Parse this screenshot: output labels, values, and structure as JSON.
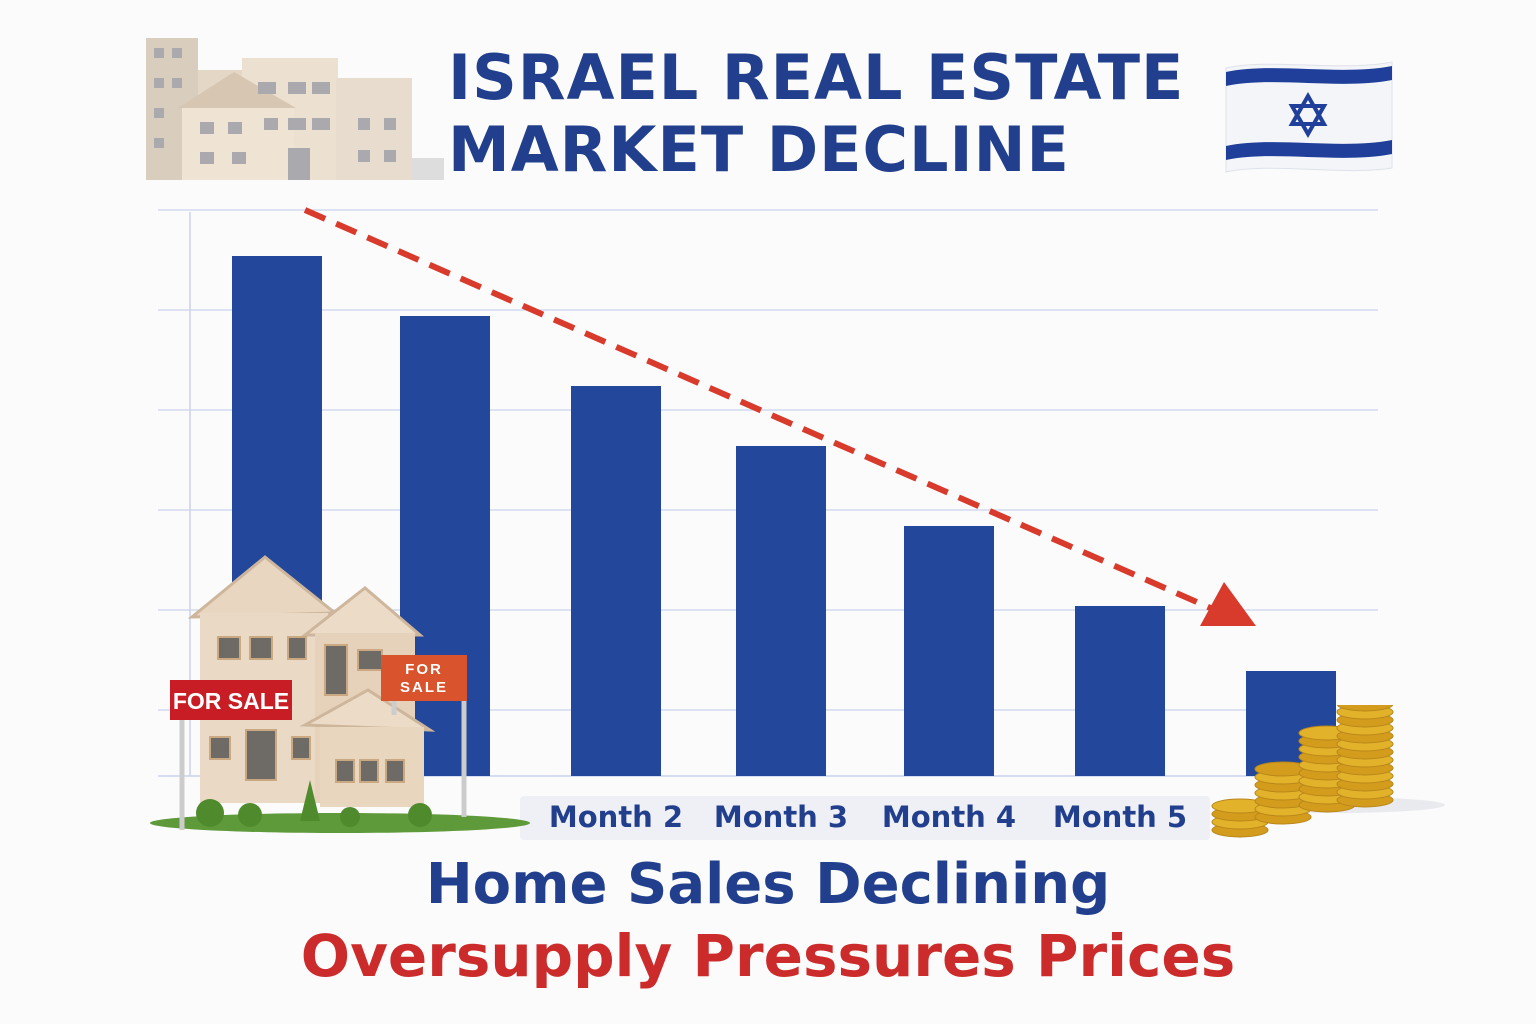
{
  "header": {
    "title_line1": "ISRAEL REAL ESTATE",
    "title_line2": "MARKET DECLINE"
  },
  "illustrations": {
    "buildings": "apartment-buildings",
    "flag": "israel-flag",
    "houses": "houses-for-sale",
    "sign_left": "FOR SALE",
    "sign_right_line1": "FOR",
    "sign_right_line2": "SALE",
    "coins": "gold-coin-stacks"
  },
  "colors": {
    "bar": "#23479a",
    "trend": "#d83a2c",
    "title": "#213f8c",
    "subtitle2": "#cc2b2b",
    "grid": "#c9d3ec"
  },
  "chart_data": {
    "type": "bar",
    "title": "",
    "xlabel": "",
    "ylabel": "",
    "categories": [
      "",
      "",
      "Month 2",
      "Month 3",
      "Month 4",
      "Month 5",
      ""
    ],
    "values": [
      5.2,
      4.6,
      3.9,
      3.3,
      2.5,
      1.7,
      1.05
    ],
    "ylim": [
      0,
      5.66
    ],
    "y_ticks_labeled": false,
    "grid": true,
    "trend_arrow": "downward dashed red arrow",
    "legend": "none"
  },
  "footer": {
    "subtitle1": "Home Sales Declining",
    "subtitle2": "Oversupply Pressures Prices"
  }
}
